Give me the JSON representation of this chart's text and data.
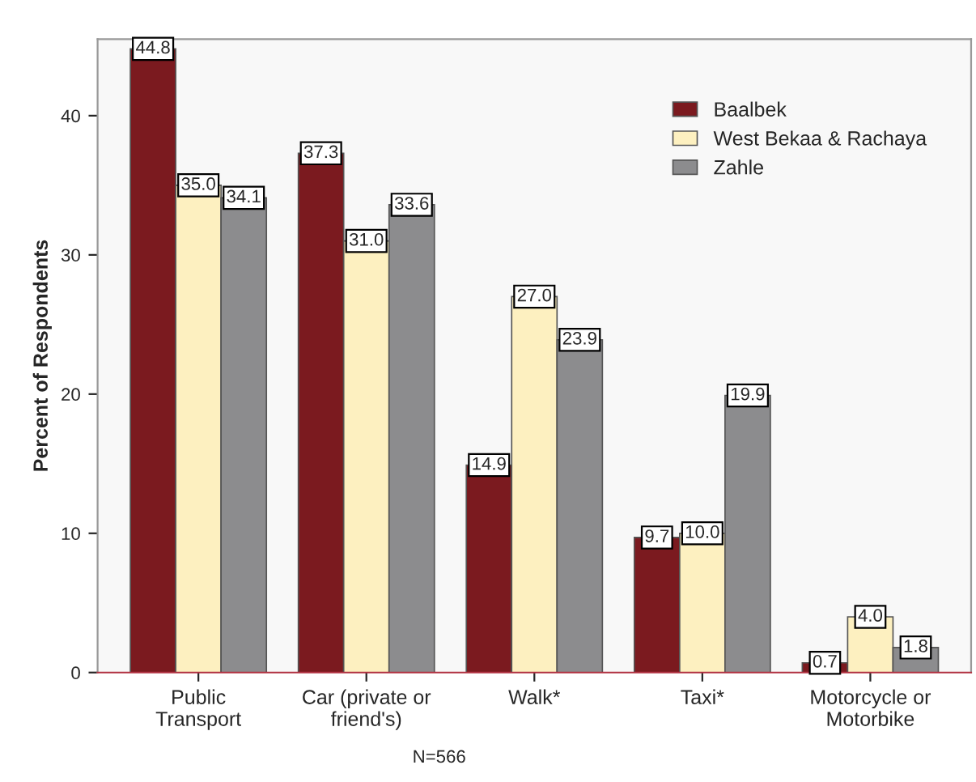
{
  "chart_data": {
    "type": "bar",
    "ylabel": "Percent of Respondents",
    "categories": [
      "Public\nTransport",
      "Car (private or\nfriend's)",
      "Walk*",
      "Taxi*",
      "Motorcycle or\nMotorbike"
    ],
    "series": [
      {
        "name": "Baalbek",
        "color": "#7b1a1f",
        "values": [
          44.8,
          37.3,
          14.9,
          9.7,
          0.7
        ],
        "value_labels": [
          "44.8",
          "37.3",
          "14.9",
          "9.7",
          "0.7"
        ]
      },
      {
        "name": "West Bekaa & Rachaya",
        "color": "#fdf0c0",
        "values": [
          35.0,
          31.0,
          27.0,
          10.0,
          4.0
        ],
        "value_labels": [
          "35.0",
          "31.0",
          "27.0",
          "10.0",
          "4.0"
        ]
      },
      {
        "name": "Zahle",
        "color": "#8c8c8e",
        "values": [
          34.1,
          33.6,
          23.9,
          19.9,
          1.8
        ],
        "value_labels": [
          "34.1",
          "33.6",
          "23.9",
          "19.9",
          "1.8"
        ]
      }
    ],
    "ylim": [
      0,
      45.5
    ],
    "yticks": [
      0,
      10,
      20,
      30,
      40
    ],
    "legend": "top right",
    "grid": false,
    "annotations": [
      "N=566"
    ]
  }
}
